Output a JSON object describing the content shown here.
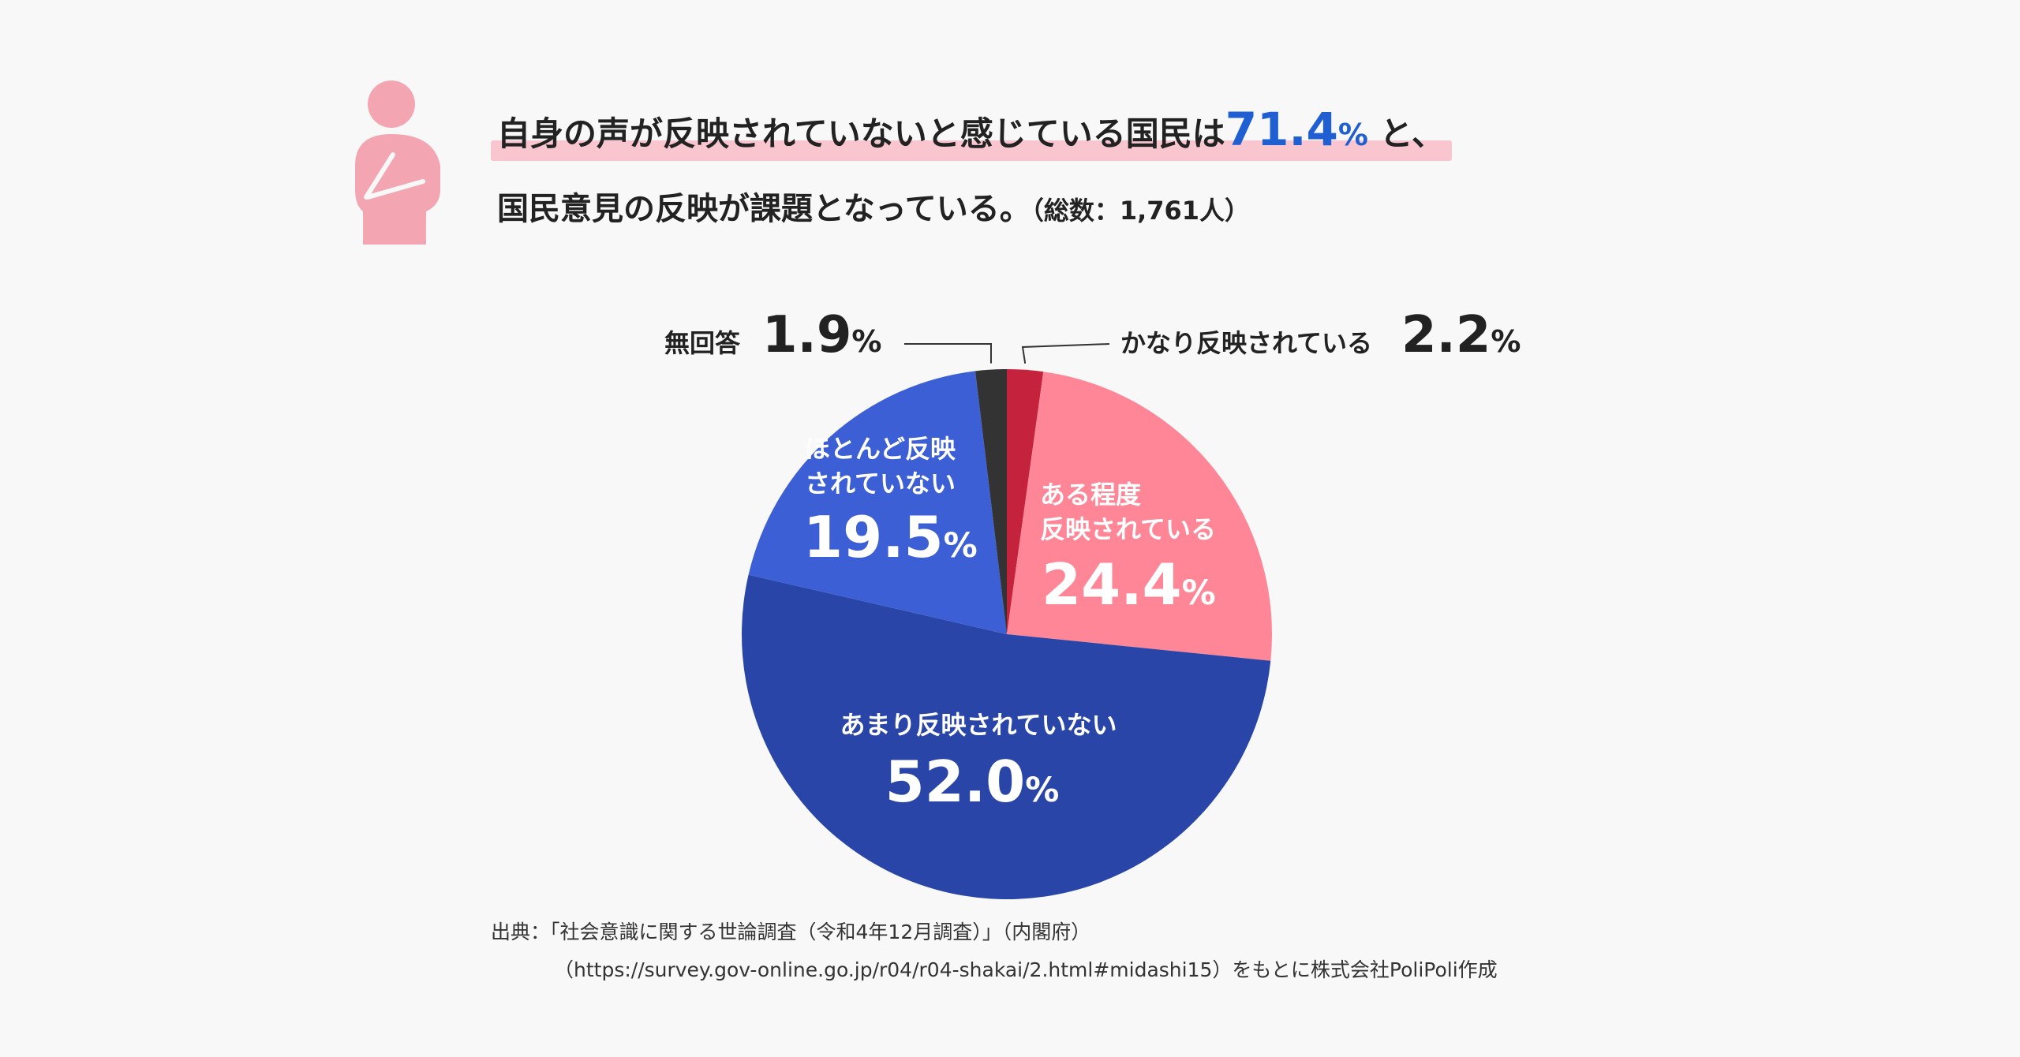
{
  "headline": {
    "line1_prefix": "自身の声が反映されていないと感じている国民は",
    "highlight_value": "71.4",
    "highlight_unit": "%",
    "line1_suffix": " と、",
    "line2_main": "国民意見の反映が課題となっている。",
    "line2_note": "（総数：1,761人）"
  },
  "colors": {
    "accent_blue": "#1f5fd1",
    "highlight_pink": "#f9c6d0",
    "icon_pink": "#f3a6b2"
  },
  "chart_data": {
    "type": "pie",
    "title": "自身の声が反映されていないと感じている国民は71.4%",
    "total_respondents": "1,761人",
    "start": "top",
    "direction": "clockwise",
    "slices": [
      {
        "label": "かなり反映されている",
        "value": 2.2,
        "display": "2.2",
        "unit": "%",
        "color": "#c5223d"
      },
      {
        "label_lines": [
          "ある程度",
          "反映されている"
        ],
        "value": 24.4,
        "display": "24.4",
        "unit": "%",
        "color": "#ff8697"
      },
      {
        "label": "あまり反映されていない",
        "value": 52.0,
        "display": "52.0",
        "unit": "%",
        "color": "#2a45a8"
      },
      {
        "label_lines": [
          "ほとんど反映",
          "されていない"
        ],
        "value": 19.5,
        "display": "19.5",
        "unit": "%",
        "color": "#3d5fd6"
      },
      {
        "label": "無回答",
        "value": 1.9,
        "display": "1.9",
        "unit": "%",
        "color": "#333333"
      }
    ]
  },
  "source": {
    "line1": "出典：「社会意識に関する世論調査（令和4年12月調査）」（内閣府）",
    "line2": "（https://survey.gov-online.go.jp/r04/r04-shakai/2.html#midashi15）をもとに株式会社PoliPoli作成"
  }
}
